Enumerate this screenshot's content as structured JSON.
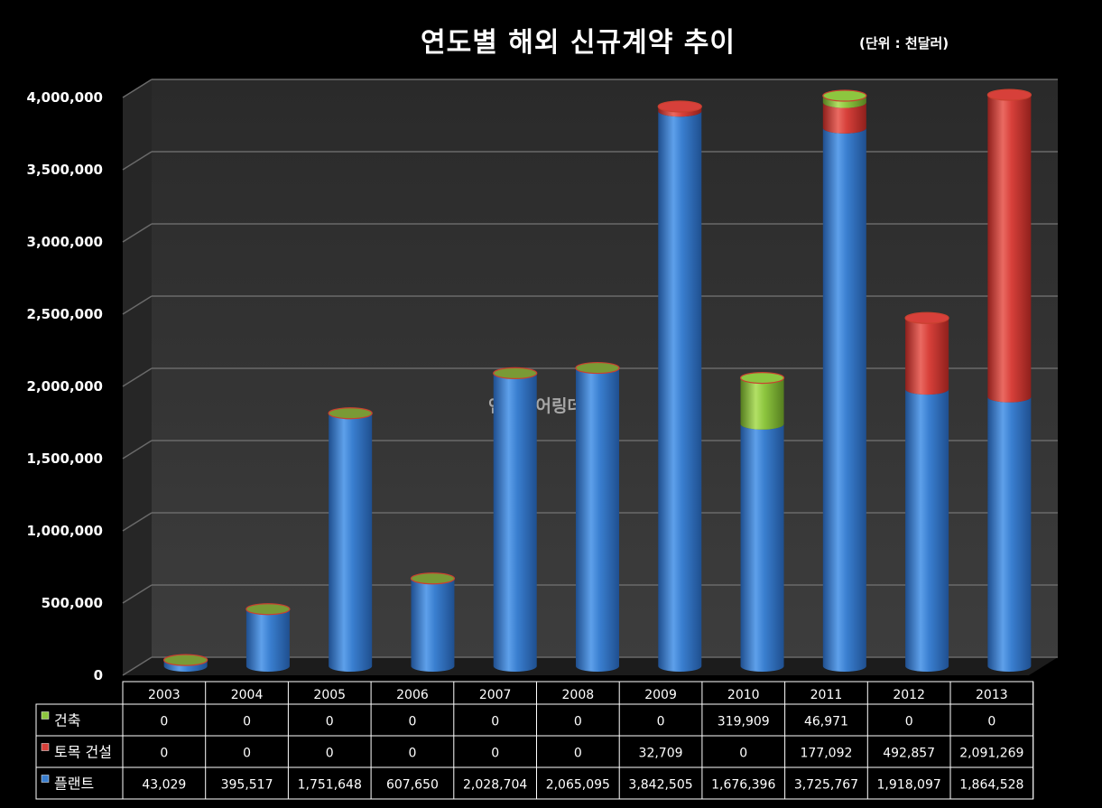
{
  "title": "연도별 해외 신규계약 추이",
  "unit_note": "(단위 : 천달러)",
  "watermark": "엔지니어링데일리",
  "colors": {
    "building": "#8dc63f",
    "civil": "#d7403a",
    "plant": "#3a7fd0",
    "wall": "#3a3a3a",
    "gridline": "#6a6a6a"
  },
  "chart_data": {
    "type": "bar",
    "stacked": true,
    "title": "연도별 해외 신규계약 추이",
    "categories": [
      "2003",
      "2004",
      "2005",
      "2006",
      "2007",
      "2008",
      "2009",
      "2010",
      "2011",
      "2012",
      "2013"
    ],
    "series": [
      {
        "name": "건축",
        "color": "#8dc63f",
        "values": [
          0,
          0,
          0,
          0,
          0,
          0,
          0,
          319909,
          46971,
          0,
          0
        ],
        "labels": [
          "0",
          "0",
          "0",
          "0",
          "0",
          "0",
          "0",
          "319,909",
          "46,971",
          "0",
          "0"
        ]
      },
      {
        "name": "토목 건설",
        "color": "#d7403a",
        "values": [
          0,
          0,
          0,
          0,
          0,
          0,
          32709,
          0,
          177092,
          492857,
          2091269
        ],
        "labels": [
          "0",
          "0",
          "0",
          "0",
          "0",
          "0",
          "32,709",
          "0",
          "177,092",
          "492,857",
          "2,091,269"
        ]
      },
      {
        "name": "플랜트",
        "color": "#3a7fd0",
        "values": [
          43029,
          395517,
          1751648,
          607650,
          2028704,
          2065095,
          3842505,
          1676396,
          3725767,
          1918097,
          1864528
        ],
        "labels": [
          "43,029",
          "395,517",
          "1,751,648",
          "607,650",
          "2,028,704",
          "2,065,095",
          "3,842,505",
          "1,676,396",
          "3,725,767",
          "1,918,097",
          "1,864,528"
        ]
      }
    ],
    "ylim": [
      0,
      4000000
    ],
    "yticks": [
      0,
      500000,
      1000000,
      1500000,
      2000000,
      2500000,
      3000000,
      3500000,
      4000000
    ],
    "ytick_labels": [
      "0",
      "500,000",
      "1,000,000",
      "1,500,000",
      "2,000,000",
      "2,500,000",
      "3,000,000",
      "3,500,000",
      "4,000,000"
    ],
    "grid": true,
    "legend": "data-table"
  }
}
